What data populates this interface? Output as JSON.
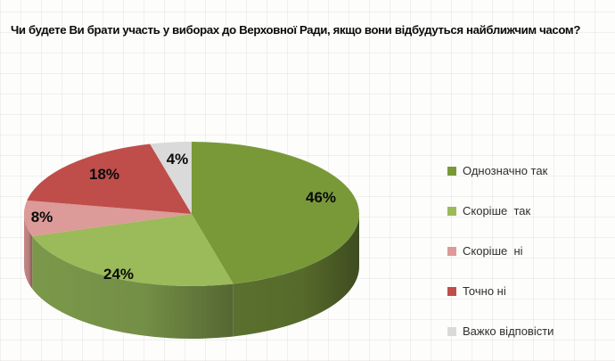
{
  "title": "Чи будете Ви брати участь у виборах до Верховної Ради, якщо вони відбудуться найближчим часом?",
  "chart_data": {
    "type": "pie",
    "is_3d": true,
    "start_angle_deg": 0,
    "direction": "clockwise",
    "data_labels": "percent",
    "legend_position": "right",
    "slices": [
      {
        "label": "Однозначно так",
        "value": 46,
        "display": "46%",
        "color": "#799939",
        "side_color": "#566A2B"
      },
      {
        "label": "Скоріше  так",
        "value": 24,
        "display": "24%",
        "color": "#9BBA59",
        "side_color": "#748F46"
      },
      {
        "label": "Скоріше  ні",
        "value": 8,
        "display": "8%",
        "color": "#DC9A98",
        "side_color": "#B97F7D"
      },
      {
        "label": "Точно ні",
        "value": 18,
        "display": "18%",
        "color": "#BF4E4B",
        "side_color": "#9E413F"
      },
      {
        "label": "Важко відповісти",
        "value": 4,
        "display": "4%",
        "color": "#DADADA",
        "side_color": "#B9B9B9"
      }
    ]
  }
}
